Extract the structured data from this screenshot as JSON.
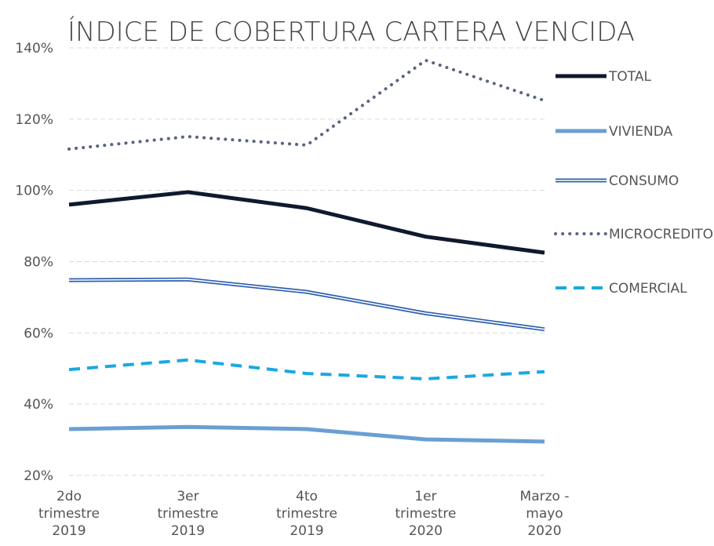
{
  "chart_data": {
    "type": "line",
    "title": "ÍNDICE DE COBERTURA CARTERA VENCIDA",
    "categories": [
      "2do trimestre 2019",
      "3er trimestre 2019",
      "4to trimestre 2019",
      "1er trimestre 2020",
      "Marzo - mayo 2020"
    ],
    "series": [
      {
        "name": "TOTAL",
        "color": "#0f1a2e",
        "style": "solid",
        "values": [
          96,
          99.5,
          95,
          87,
          82.5
        ]
      },
      {
        "name": "VIVIENDA",
        "color": "#6a9fd4",
        "style": "solid",
        "values": [
          33,
          33.6,
          33,
          30.1,
          29.5
        ]
      },
      {
        "name": "CONSUMO",
        "color": "#2f5fb0",
        "style": "double",
        "values": [
          74.8,
          75,
          71.5,
          65.5,
          61
        ]
      },
      {
        "name": "MICROCREDITO",
        "color": "#5a6480",
        "style": "dotted",
        "values": [
          111.6,
          115.1,
          112.7,
          136.5,
          125.2
        ]
      },
      {
        "name": "COMERCIAL",
        "color": "#1ba8e0",
        "style": "dashed",
        "values": [
          49.7,
          52.4,
          48.6,
          47.1,
          49.1
        ]
      }
    ],
    "ylim": [
      20,
      140
    ],
    "yticks": [
      {
        "value": 20,
        "label": "20%"
      },
      {
        "value": 40,
        "label": "40%"
      },
      {
        "value": 60,
        "label": "60%"
      },
      {
        "value": 80,
        "label": "80%"
      },
      {
        "value": 100,
        "label": "100%"
      },
      {
        "value": 120,
        "label": "120%"
      },
      {
        "value": 140,
        "label": "140%"
      }
    ],
    "grid": true,
    "legend": "right"
  }
}
